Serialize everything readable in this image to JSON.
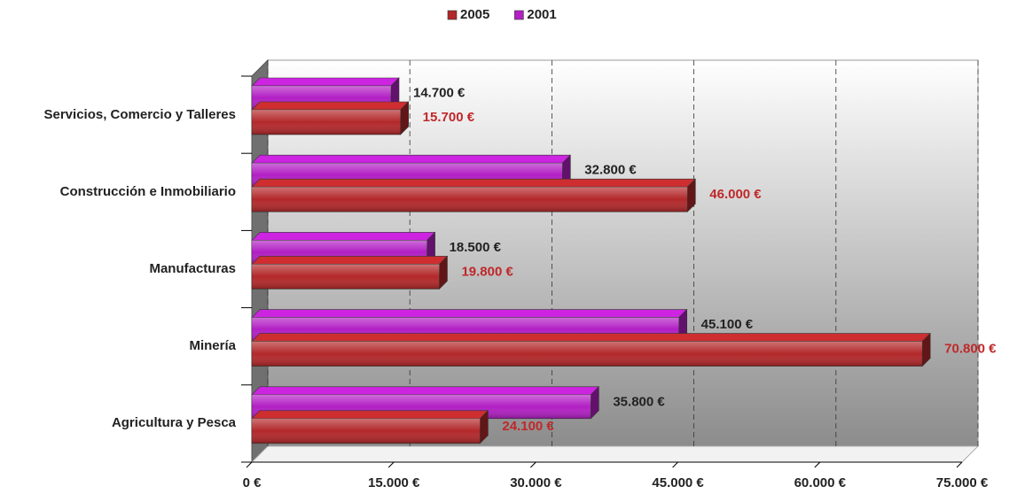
{
  "chart_data": {
    "type": "bar3d_horizontal",
    "categories": [
      "Servicios, Comercio y Talleres",
      "Construcción e Inmobiliario",
      "Manufacturas",
      "Minería",
      "Agricultura y Pesca"
    ],
    "series": [
      {
        "name": "2005",
        "color": "#b3282a",
        "label_color": "#c0282a",
        "values": [
          15700,
          46000,
          19800,
          70800,
          24100
        ],
        "value_labels": [
          "15.700 €",
          "46.000 €",
          "19.800 €",
          "70.800 €",
          "24.100 €"
        ]
      },
      {
        "name": "2001",
        "color": "#b21fc4",
        "label_color": "#222222",
        "values": [
          14700,
          32800,
          18500,
          45100,
          35800
        ],
        "value_labels": [
          "14.700 €",
          "32.800 €",
          "18.500 €",
          "45.100 €",
          "35.800 €"
        ]
      }
    ],
    "xlim": [
      0,
      75000
    ],
    "xticks": [
      {
        "value": 0,
        "label": "0 €"
      },
      {
        "value": 15000,
        "label": "15.000 €"
      },
      {
        "value": 30000,
        "label": "30.000 €"
      },
      {
        "value": 45000,
        "label": "45.000 €"
      },
      {
        "value": 60000,
        "label": "60.000 €"
      },
      {
        "value": 75000,
        "label": "75.000 €"
      }
    ],
    "grid": true,
    "legend": "top"
  }
}
